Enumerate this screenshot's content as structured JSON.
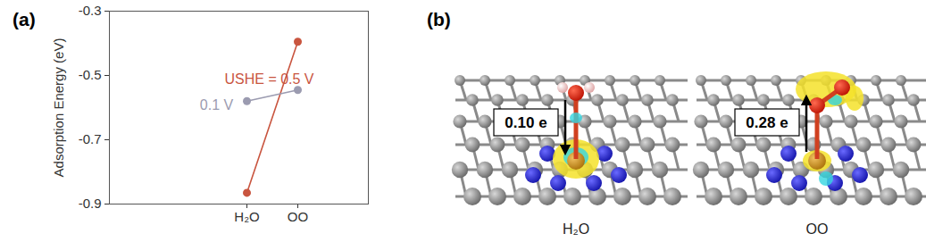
{
  "panel_labels": [
    "(a)",
    "(b)"
  ],
  "chart_data": {
    "type": "line",
    "y_label": "Adsorption Energy (eV)",
    "categories": [
      "H₂O",
      "OO"
    ],
    "series": [
      {
        "name": "USHE = 0.5 V",
        "color": "#c9553f",
        "values": [
          -0.865,
          -0.395
        ]
      },
      {
        "name": "0.1 V",
        "color": "#9b9bb0",
        "values": [
          -0.58,
          -0.545
        ]
      }
    ],
    "ylim": [
      -0.9,
      -0.3
    ],
    "yticks": [
      -0.9,
      -0.7,
      -0.5,
      -0.3
    ],
    "grid": false,
    "marker": "circle"
  },
  "diagram": {
    "structures": [
      {
        "label": "H₂O",
        "charge_transfer": "0.10 e",
        "direction": "down"
      },
      {
        "label": "OO",
        "charge_transfer": "0.28 e",
        "direction": "up"
      }
    ]
  }
}
